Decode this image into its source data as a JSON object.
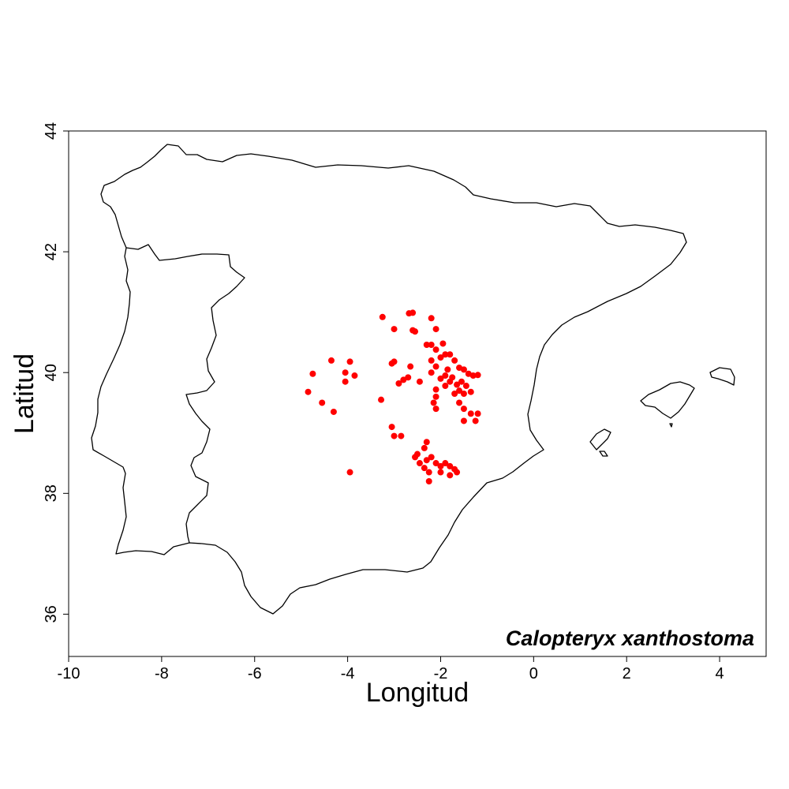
{
  "map": {
    "species": "Calopteryx xanthostoma",
    "xlabel": "Longitud",
    "ylabel": "Latitud",
    "xlim": [
      -10,
      5
    ],
    "ylim": [
      35.3,
      44
    ],
    "xticks": [
      "-10",
      "-8",
      "-6",
      "-4",
      "-2",
      "0",
      "2",
      "4"
    ],
    "yticks": [
      "36",
      "38",
      "40",
      "42",
      "44"
    ],
    "point_color": "#ff0000",
    "outline_color": "#000000",
    "occurrences": [
      [
        -3.25,
        40.92
      ],
      [
        -2.68,
        40.98
      ],
      [
        -2.6,
        40.99
      ],
      [
        -2.2,
        40.9
      ],
      [
        -3.0,
        40.72
      ],
      [
        -2.6,
        40.7
      ],
      [
        -2.55,
        40.68
      ],
      [
        -2.1,
        40.72
      ],
      [
        -2.3,
        40.46
      ],
      [
        -2.2,
        40.46
      ],
      [
        -1.95,
        40.48
      ],
      [
        -2.1,
        40.38
      ],
      [
        -1.9,
        40.3
      ],
      [
        -2.0,
        40.25
      ],
      [
        -1.8,
        40.3
      ],
      [
        -1.7,
        40.2
      ],
      [
        -2.2,
        40.2
      ],
      [
        -2.1,
        40.1
      ],
      [
        -2.2,
        40.0
      ],
      [
        -1.85,
        40.05
      ],
      [
        -1.6,
        40.08
      ],
      [
        -1.5,
        40.05
      ],
      [
        -1.4,
        39.98
      ],
      [
        -1.2,
        39.96
      ],
      [
        -1.3,
        39.95
      ],
      [
        -1.9,
        39.95
      ],
      [
        -1.75,
        39.92
      ],
      [
        -1.8,
        39.85
      ],
      [
        -1.65,
        39.8
      ],
      [
        -1.55,
        39.85
      ],
      [
        -1.45,
        39.78
      ],
      [
        -1.6,
        39.7
      ],
      [
        -1.7,
        39.65
      ],
      [
        -1.5,
        39.65
      ],
      [
        -1.35,
        39.68
      ],
      [
        -1.9,
        39.78
      ],
      [
        -2.0,
        39.9
      ],
      [
        -2.1,
        39.72
      ],
      [
        -2.1,
        39.6
      ],
      [
        -2.15,
        39.5
      ],
      [
        -2.1,
        39.4
      ],
      [
        -1.6,
        39.5
      ],
      [
        -1.5,
        39.4
      ],
      [
        -1.35,
        39.32
      ],
      [
        -1.2,
        39.32
      ],
      [
        -1.25,
        39.2
      ],
      [
        -1.5,
        39.2
      ],
      [
        -2.45,
        39.85
      ],
      [
        -2.7,
        39.92
      ],
      [
        -2.8,
        39.88
      ],
      [
        -2.9,
        39.82
      ],
      [
        -3.0,
        40.18
      ],
      [
        -3.05,
        40.15
      ],
      [
        -2.65,
        40.1
      ],
      [
        -3.28,
        39.55
      ],
      [
        -3.05,
        39.1
      ],
      [
        -3.0,
        38.95
      ],
      [
        -2.85,
        38.95
      ],
      [
        -2.3,
        38.85
      ],
      [
        -2.35,
        38.75
      ],
      [
        -2.5,
        38.65
      ],
      [
        -2.55,
        38.6
      ],
      [
        -2.45,
        38.5
      ],
      [
        -2.3,
        38.55
      ],
      [
        -2.2,
        38.6
      ],
      [
        -2.1,
        38.5
      ],
      [
        -2.0,
        38.45
      ],
      [
        -1.9,
        38.5
      ],
      [
        -1.8,
        38.45
      ],
      [
        -1.7,
        38.4
      ],
      [
        -1.65,
        38.35
      ],
      [
        -1.8,
        38.3
      ],
      [
        -2.0,
        38.35
      ],
      [
        -2.25,
        38.35
      ],
      [
        -2.35,
        38.42
      ],
      [
        -2.25,
        38.2
      ],
      [
        -4.85,
        39.68
      ],
      [
        -4.75,
        39.98
      ],
      [
        -4.55,
        39.5
      ],
      [
        -4.35,
        40.2
      ],
      [
        -4.3,
        39.35
      ],
      [
        -4.05,
        40.0
      ],
      [
        -4.05,
        39.85
      ],
      [
        -3.95,
        40.18
      ],
      [
        -3.85,
        39.95
      ],
      [
        -3.95,
        38.35
      ]
    ]
  }
}
